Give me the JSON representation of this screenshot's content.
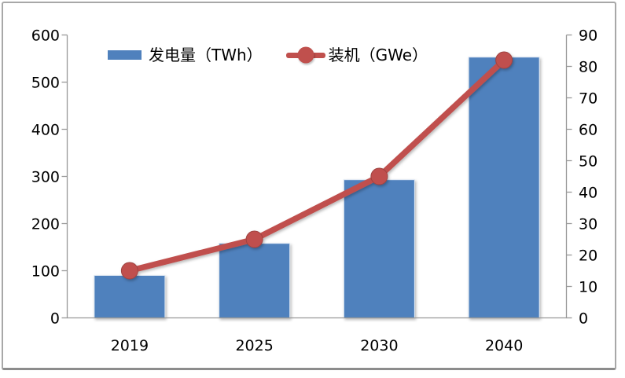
{
  "chart_data": {
    "type": "combo-bar-line",
    "title": "",
    "categories": [
      "2019",
      "2025",
      "2030",
      "2040"
    ],
    "series": [
      {
        "name": "发电量（TWh）",
        "type": "bar",
        "axis": "left",
        "values": [
          90,
          158,
          293,
          553
        ]
      },
      {
        "name": "装机（GWe）",
        "type": "line",
        "axis": "right",
        "values": [
          15,
          25,
          45,
          82
        ]
      }
    ],
    "left_axis": {
      "min": 0,
      "max": 600,
      "step": 100,
      "ticks": [
        0,
        100,
        200,
        300,
        400,
        500,
        600
      ]
    },
    "right_axis": {
      "min": 0,
      "max": 90,
      "step": 10,
      "ticks": [
        0,
        10,
        20,
        30,
        40,
        50,
        60,
        70,
        80,
        90
      ]
    },
    "grid": false,
    "legend_position": "top"
  },
  "legend": {
    "bar_label": "发电量（TWh）",
    "line_label": "装机（GWe）"
  },
  "colors": {
    "bar": "#4F81BD",
    "line": "#C0504D",
    "marker_edge": "#9E4340",
    "axis": "#999999",
    "text": "#000000",
    "frame_border": "#a8a8a8"
  }
}
